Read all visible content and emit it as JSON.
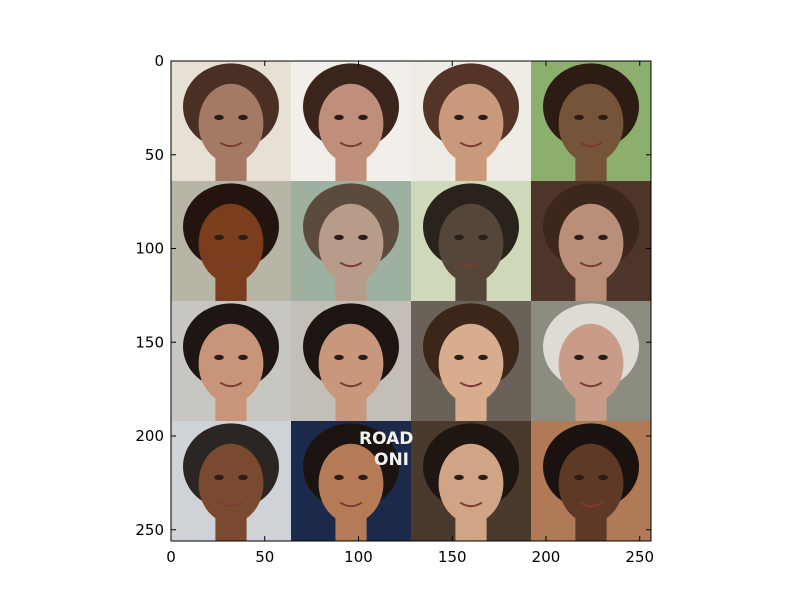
{
  "chart_data": {
    "type": "image",
    "xlim": [
      0,
      256
    ],
    "ylim": [
      256,
      0
    ],
    "grid": false,
    "xticks": [
      0,
      50,
      100,
      150,
      200,
      250
    ],
    "yticks": [
      0,
      50,
      100,
      150,
      200,
      250
    ],
    "grid_rows": 4,
    "grid_cols": 4,
    "tile_size": 64
  },
  "tiles": [
    {
      "row": 0,
      "col": 0,
      "bg": "#e6e1d4",
      "face": "#a57a64",
      "hair": "#4a3024"
    },
    {
      "row": 0,
      "col": 1,
      "bg": "#f2efea",
      "face": "#bf8f7c",
      "hair": "#3a241c"
    },
    {
      "row": 0,
      "col": 2,
      "bg": "#efece5",
      "face": "#c89a7b",
      "hair": "#533426"
    },
    {
      "row": 0,
      "col": 3,
      "bg": "#8caf6e",
      "face": "#76543a",
      "hair": "#2c1c14"
    },
    {
      "row": 1,
      "col": 0,
      "bg": "#b8b4a6",
      "face": "#7a3e1f",
      "hair": "#231410"
    },
    {
      "row": 1,
      "col": 1,
      "bg": "#9eb0a0",
      "face": "#b79c89",
      "hair": "#5c4a3c"
    },
    {
      "row": 1,
      "col": 2,
      "bg": "#cfd8b8",
      "face": "#54473a",
      "hair": "#2a231c"
    },
    {
      "row": 1,
      "col": 3,
      "bg": "#4d3629",
      "face": "#b98f7a",
      "hair": "#3d271c"
    },
    {
      "row": 2,
      "col": 0,
      "bg": "#c7c6c0",
      "face": "#c8957a",
      "hair": "#1e1613"
    },
    {
      "row": 2,
      "col": 1,
      "bg": "#c4bfb6",
      "face": "#c9987c",
      "hair": "#1c1512"
    },
    {
      "row": 2,
      "col": 2,
      "bg": "#6a6258",
      "face": "#d7ad8e",
      "hair": "#3b2619"
    },
    {
      "row": 2,
      "col": 3,
      "bg": "#8d8c80",
      "face": "#c99c8a",
      "hair": "#dedad4"
    },
    {
      "row": 3,
      "col": 0,
      "bg": "#cfd2d6",
      "face": "#7a4a30",
      "hair": "#2b2623"
    },
    {
      "row": 3,
      "col": 1,
      "bg": "#1b2a4a",
      "face": "#b57b57",
      "hair": "#1b1310"
    },
    {
      "row": 3,
      "col": 2,
      "bg": "#4a3a2e",
      "face": "#d0a585",
      "hair": "#1f1511"
    },
    {
      "row": 3,
      "col": 3,
      "bg": "#b07a56",
      "face": "#5e3a26",
      "hair": "#1a120e"
    }
  ],
  "signs": {
    "road": "ROAD",
    "oni": "ONI"
  }
}
